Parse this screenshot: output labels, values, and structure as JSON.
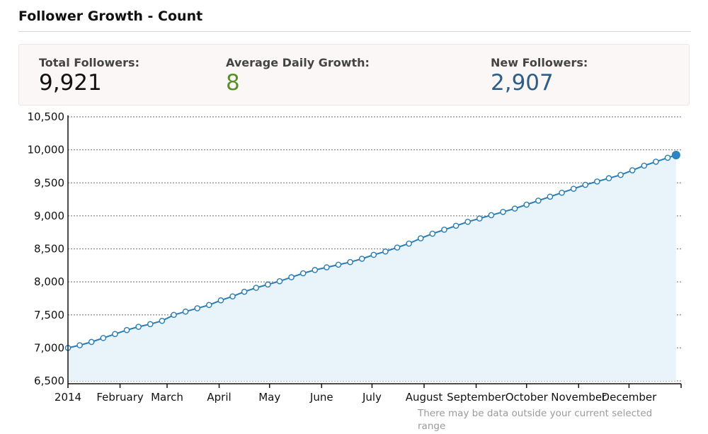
{
  "page": {
    "title": "Follower Growth - Count"
  },
  "stats": [
    {
      "label": "Total Followers:",
      "value": "9,921",
      "color": "#111111"
    },
    {
      "label": "Average Daily Growth:",
      "value": "8",
      "color": "#5b8f2e"
    },
    {
      "label": "New Followers:",
      "value": "2,907",
      "color": "#2e5d86"
    }
  ],
  "note": {
    "line1": "There may be data outside your current selected",
    "line2": "range"
  },
  "colors": {
    "line": "#2a7db3",
    "point_fill": "#ffffff",
    "area": "#e8f3fa",
    "grid": "#8a8a8a",
    "last_point": "#2a86c7"
  },
  "chart_data": {
    "type": "area",
    "title": "Follower Growth - Count",
    "xlabel": "",
    "ylabel": "",
    "ylim": [
      6500,
      10500
    ],
    "yticks": [
      6500,
      7000,
      7500,
      8000,
      8500,
      9000,
      9500,
      10000,
      10500
    ],
    "ytick_labels": [
      "6,500",
      "7,000",
      "7,500",
      "8,000",
      "8,500",
      "9,000",
      "9,500",
      "10,000",
      "10,500"
    ],
    "x_tick_labels": [
      "2014",
      "February",
      "March",
      "April",
      "May",
      "June",
      "July",
      "August",
      "September",
      "October",
      "November",
      "December"
    ],
    "x_tick_days": [
      0,
      31,
      59,
      90,
      120,
      151,
      181,
      212,
      243,
      273,
      304,
      334
    ],
    "x_range_days": [
      0,
      365
    ],
    "grid": "horizontal dotted",
    "series": [
      {
        "x": [
          0,
          7,
          14,
          21,
          28,
          35,
          42,
          49,
          56,
          63,
          70,
          77,
          84,
          91,
          98,
          105,
          112,
          119,
          126,
          133,
          140,
          147,
          154,
          161,
          168,
          175,
          182,
          189,
          196,
          203,
          210,
          217,
          224,
          231,
          238,
          245,
          252,
          259,
          266,
          273,
          280,
          287,
          294,
          301,
          308,
          315,
          322,
          329,
          336,
          343,
          350,
          357,
          362
        ],
        "y": [
          7000,
          7040,
          7090,
          7150,
          7210,
          7270,
          7320,
          7360,
          7410,
          7500,
          7550,
          7600,
          7650,
          7720,
          7780,
          7850,
          7910,
          7960,
          8010,
          8070,
          8130,
          8180,
          8220,
          8260,
          8300,
          8350,
          8410,
          8460,
          8520,
          8580,
          8660,
          8730,
          8790,
          8850,
          8910,
          8960,
          9010,
          9060,
          9110,
          9170,
          9230,
          9290,
          9350,
          9410,
          9470,
          9520,
          9570,
          9620,
          9690,
          9760,
          9820,
          9880,
          9921
        ]
      }
    ]
  }
}
